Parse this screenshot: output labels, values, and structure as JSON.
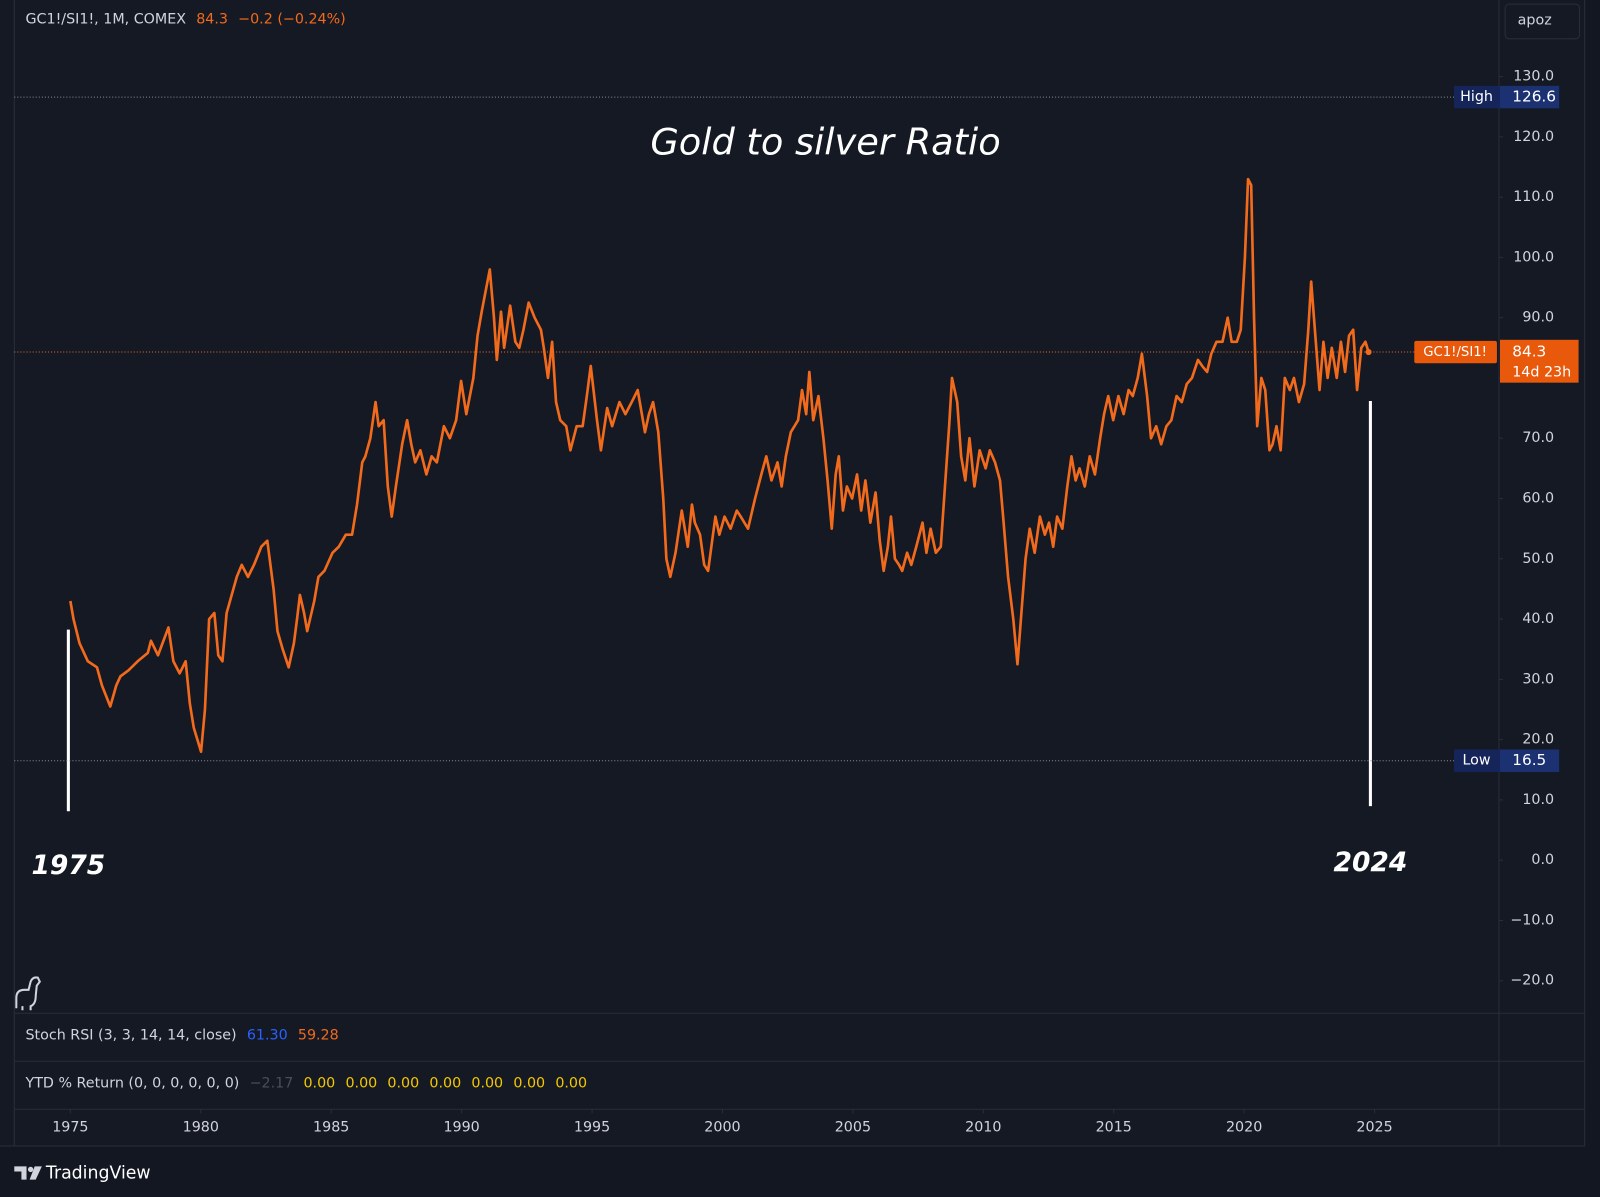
{
  "header": {
    "symbol": "GC1!/SI1!, 1M, COMEX",
    "last": "84.3",
    "change": "−0.2 (−0.24%)"
  },
  "user": "apoz",
  "chart_data": {
    "type": "line",
    "title": "Gold to silver Ratio",
    "annotations": [
      "1975",
      "2024"
    ],
    "x": [
      1975.0,
      1975.12,
      1975.35,
      1975.67,
      1976.02,
      1976.21,
      1976.53,
      1976.76,
      1976.92,
      1977.23,
      1977.58,
      1977.97,
      1978.09,
      1978.36,
      1978.76,
      1978.95,
      1979.19,
      1979.42,
      1979.58,
      1979.73,
      1980.01,
      1980.16,
      1980.32,
      1980.52,
      1980.67,
      1980.83,
      1980.99,
      1981.38,
      1981.57,
      1981.81,
      1982.04,
      1982.32,
      1982.55,
      1982.79,
      1982.94,
      1983.14,
      1983.37,
      1983.57,
      1983.69,
      1983.8,
      1983.96,
      1984.08,
      1984.35,
      1984.51,
      1984.74,
      1985.05,
      1985.29,
      1985.56,
      1985.8,
      1985.99,
      1986.19,
      1986.31,
      1986.5,
      1986.7,
      1986.82,
      1987.01,
      1987.17,
      1987.32,
      1987.48,
      1987.72,
      1987.91,
      1988.07,
      1988.22,
      1988.42,
      1988.65,
      1988.85,
      1989.05,
      1989.32,
      1989.55,
      1989.79,
      1989.98,
      1990.18,
      1990.45,
      1990.61,
      1990.77,
      1991.08,
      1991.24,
      1991.35,
      1991.51,
      1991.63,
      1991.86,
      1992.06,
      1992.21,
      1992.37,
      1992.57,
      1992.8,
      1993.04,
      1993.15,
      1993.31,
      1993.47,
      1993.62,
      1993.78,
      1994.01,
      1994.17,
      1994.41,
      1994.64,
      1994.8,
      1994.95,
      1995.19,
      1995.34,
      1995.58,
      1995.77,
      1996.05,
      1996.28,
      1996.52,
      1996.75,
      1997.03,
      1997.18,
      1997.34,
      1997.54,
      1997.73,
      1997.85,
      1998.0,
      1998.2,
      1998.44,
      1998.67,
      1998.83,
      1998.94,
      1999.14,
      1999.3,
      1999.45,
      1999.73,
      1999.88,
      2000.08,
      2000.31,
      2000.55,
      2000.7,
      2000.98,
      2001.25,
      2001.49,
      2001.68,
      2001.88,
      2002.11,
      2002.27,
      2002.43,
      2002.62,
      2002.9,
      2003.05,
      2003.21,
      2003.33,
      2003.48,
      2003.68,
      2003.87,
      2004.03,
      2004.19,
      2004.34,
      2004.46,
      2004.62,
      2004.77,
      2004.97,
      2005.16,
      2005.32,
      2005.48,
      2005.67,
      2005.87,
      2006.03,
      2006.18,
      2006.34,
      2006.46,
      2006.61,
      2006.77,
      2006.89,
      2007.08,
      2007.24,
      2007.43,
      2007.67,
      2007.82,
      2007.98,
      2008.18,
      2008.37,
      2008.53,
      2008.69,
      2008.8,
      2009.0,
      2009.15,
      2009.31,
      2009.47,
      2009.66,
      2009.86,
      2010.09,
      2010.25,
      2010.45,
      2010.64,
      2010.76,
      2010.95,
      2011.15,
      2011.31,
      2011.46,
      2011.62,
      2011.78,
      2011.97,
      2012.17,
      2012.36,
      2012.52,
      2012.68,
      2012.83,
      2013.03,
      2013.22,
      2013.38,
      2013.54,
      2013.69,
      2013.89,
      2014.08,
      2014.28,
      2014.48,
      2014.63,
      2014.79,
      2014.98,
      2015.18,
      2015.38,
      2015.57,
      2015.73,
      2015.92,
      2016.08,
      2016.28,
      2016.43,
      2016.63,
      2016.82,
      2017.02,
      2017.21,
      2017.41,
      2017.61,
      2017.8,
      2018.0,
      2018.23,
      2018.39,
      2018.58,
      2018.74,
      2018.94,
      2019.17,
      2019.37,
      2019.52,
      2019.72,
      2019.87,
      2020.03,
      2020.15,
      2020.27,
      2020.38,
      2020.5,
      2020.66,
      2020.81,
      2020.97,
      2021.09,
      2021.24,
      2021.4,
      2021.56,
      2021.75,
      2021.91,
      2022.1,
      2022.3,
      2022.46,
      2022.57,
      2022.73,
      2022.89,
      2023.04,
      2023.2,
      2023.36,
      2023.55,
      2023.71,
      2023.87,
      2024.02,
      2024.18,
      2024.33,
      2024.49,
      2024.65,
      2024.77
    ],
    "series": [
      {
        "name": "GC1!/SI1!",
        "color": "#f26a1b",
        "values": [
          43,
          40,
          36,
          33,
          32,
          29,
          25.5,
          29,
          30.5,
          31.5,
          33,
          34.4,
          36.4,
          34,
          38.6,
          33,
          31,
          33,
          26,
          22,
          18,
          25,
          40,
          41,
          34,
          33,
          41,
          47,
          49,
          47,
          49,
          52,
          53,
          45,
          38,
          35,
          32,
          36,
          40,
          44,
          41,
          38,
          43,
          47,
          48,
          51,
          52,
          54,
          54,
          59,
          66,
          67,
          70,
          76,
          72,
          73,
          62,
          57,
          62,
          69,
          73,
          69,
          66,
          68,
          64,
          67,
          66,
          72,
          70,
          73,
          79.5,
          74,
          80,
          87,
          91,
          98,
          90,
          83,
          91,
          85,
          92,
          86,
          85,
          88,
          92.5,
          90,
          88,
          85,
          80,
          86,
          76,
          73,
          72,
          68,
          72,
          72,
          77,
          82,
          73,
          68,
          75,
          72,
          76,
          74,
          76,
          78,
          71,
          74,
          76,
          71,
          60,
          50,
          47,
          51,
          58,
          52,
          59,
          56,
          54,
          49,
          48,
          57,
          54,
          57,
          55,
          58,
          57,
          55,
          60,
          64,
          67,
          63,
          66,
          62,
          67,
          71,
          73,
          78,
          74,
          81,
          73,
          77,
          70,
          63,
          55,
          64,
          67,
          58,
          62,
          60,
          64,
          58,
          63,
          56,
          61,
          53,
          48,
          52,
          57,
          50,
          49,
          48,
          51,
          49,
          52,
          56,
          51,
          55,
          51,
          52,
          62,
          72,
          80,
          76,
          67,
          63,
          70,
          62,
          68,
          65,
          68,
          66,
          63,
          57,
          47,
          40,
          32.5,
          41,
          50,
          55,
          51,
          57,
          54,
          56,
          52,
          57,
          55,
          62,
          67,
          63,
          65,
          62,
          67,
          64,
          70,
          74,
          77,
          73,
          77,
          74,
          78,
          77,
          80,
          84,
          77,
          70,
          72,
          69,
          72,
          73,
          77,
          76,
          79,
          80,
          83,
          82,
          81,
          84,
          86,
          86,
          90,
          86,
          86,
          88,
          100,
          113,
          112,
          90,
          72,
          80,
          78,
          68,
          69,
          72,
          68,
          80,
          78,
          80,
          76,
          79,
          88,
          96,
          87,
          78,
          86,
          80,
          85,
          80,
          86,
          81,
          87,
          88,
          78,
          85,
          86,
          84.3
        ]
      }
    ],
    "xlim": [
      1972.85,
      2029.77
    ],
    "ylim": [
      -25.4,
      142.7
    ],
    "xticks": [
      1975,
      1980,
      1985,
      1990,
      1995,
      2000,
      2005,
      2010,
      2015,
      2020,
      2025
    ],
    "yticks": [
      {
        "value": 130,
        "label": "130.0"
      },
      {
        "value": 120,
        "label": "120.0"
      },
      {
        "value": 110,
        "label": "110.0"
      },
      {
        "value": 100,
        "label": "100.0"
      },
      {
        "value": 90,
        "label": "90.0"
      },
      {
        "value": 80,
        "label": "80.0"
      },
      {
        "value": 70,
        "label": "70.0"
      },
      {
        "value": 60,
        "label": "60.0"
      },
      {
        "value": 50,
        "label": "50.0"
      },
      {
        "value": 40,
        "label": "40.0"
      },
      {
        "value": 30,
        "label": "30.0"
      },
      {
        "value": 20,
        "label": "20.0"
      },
      {
        "value": 10,
        "label": "10.0"
      },
      {
        "value": 0,
        "label": "0.0"
      },
      {
        "value": -10,
        "label": "−10.0"
      },
      {
        "value": -20,
        "label": "−20.0"
      }
    ],
    "grid": false,
    "high": {
      "label": "High",
      "value": 126.6
    },
    "low": {
      "label": "Low",
      "value": 16.5
    },
    "countdown": "14d 23h"
  },
  "indicators": [
    {
      "label": "Stoch RSI (3, 3, 14, 14, close)",
      "values": [
        "61.30",
        "59.28"
      ],
      "colors": [
        "#2962ff",
        "#f26a1b"
      ]
    },
    {
      "label": "YTD % Return (0, 0, 0, 0, 0, 0)",
      "values": [
        "−2.17",
        "0.00",
        "0.00",
        "0.00",
        "0.00",
        "0.00",
        "0.00",
        "0.00"
      ],
      "colors": [
        "#4a4e59",
        "#f5c800",
        "#f5c800",
        "#f5c800",
        "#f5c800",
        "#f5c800",
        "#f5c800",
        "#f5c800"
      ]
    }
  ],
  "brand": "TradingView"
}
